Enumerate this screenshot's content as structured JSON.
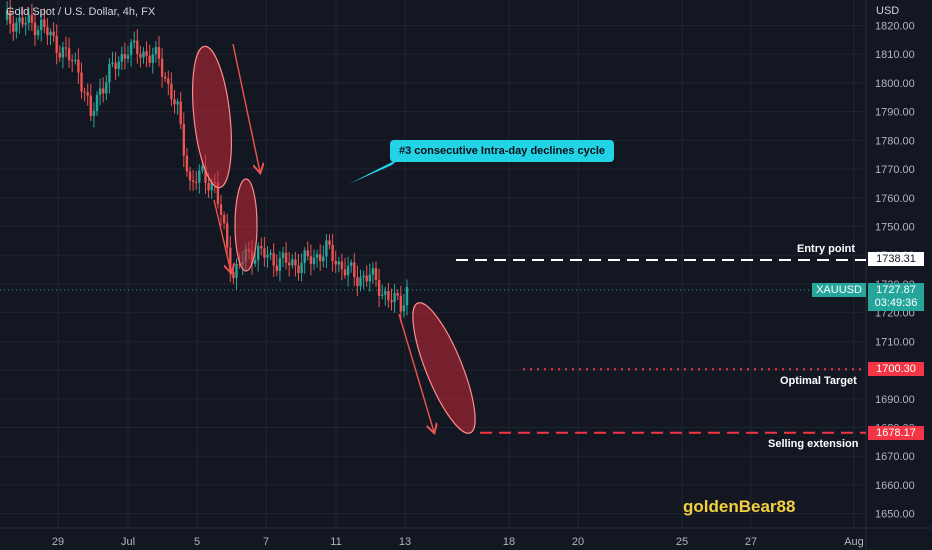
{
  "header": {
    "title": "Gold Spot / U.S. Dollar, 4h, FX",
    "currency": "USD"
  },
  "annotations": {
    "callout": "#3 consecutive Intra-day declines cycle",
    "entry_label": "Entry point",
    "target_label": "Optimal Target",
    "extension_label": "Selling extension",
    "author": "goldenBear88"
  },
  "price_tags": {
    "entry": "1738.31",
    "target": "1700.30",
    "extension": "1678.17",
    "symbol": "XAUUSD",
    "current": "1727.87",
    "countdown": "03:49:36"
  },
  "colors": {
    "background": "#131722",
    "grid": "#1f2431",
    "up": "#26a69a",
    "down": "#ef5350",
    "entry_line": "#ffffff",
    "target_line": "#f23645",
    "callout": "#22d3e6",
    "author": "#f4d03f"
  },
  "chart_data": {
    "type": "candlestick",
    "ylim": [
      1645,
      1824
    ],
    "y_ticks": [
      1650,
      1660,
      1670,
      1680,
      1690,
      1700,
      1710,
      1720,
      1730,
      1740,
      1750,
      1760,
      1770,
      1780,
      1790,
      1800,
      1810,
      1820
    ],
    "x_ticks": [
      "29",
      "Jul",
      "5",
      "7",
      "11",
      "13",
      "18",
      "20",
      "25",
      "27",
      "Aug"
    ],
    "grid": true,
    "levels": {
      "entry": 1738.31,
      "target": 1700.3,
      "extension": 1678.17,
      "current": 1727.87
    },
    "anchors": [
      [
        0,
        1822
      ],
      [
        12,
        1820
      ],
      [
        18,
        1812
      ],
      [
        24,
        1805
      ],
      [
        28,
        1788
      ],
      [
        31,
        1798
      ],
      [
        35,
        1805
      ],
      [
        40,
        1812
      ],
      [
        46,
        1810
      ],
      [
        50,
        1808
      ],
      [
        56,
        1790
      ],
      [
        60,
        1765
      ],
      [
        64,
        1768
      ],
      [
        68,
        1764
      ],
      [
        71,
        1748
      ],
      [
        74,
        1733
      ],
      [
        78,
        1740
      ],
      [
        82,
        1741
      ],
      [
        88,
        1738
      ],
      [
        94,
        1737
      ],
      [
        100,
        1739
      ],
      [
        104,
        1742
      ],
      [
        108,
        1737
      ],
      [
        114,
        1732
      ],
      [
        118,
        1733
      ],
      [
        124,
        1725
      ],
      [
        128,
        1723
      ],
      [
        130,
        1728
      ]
    ]
  }
}
